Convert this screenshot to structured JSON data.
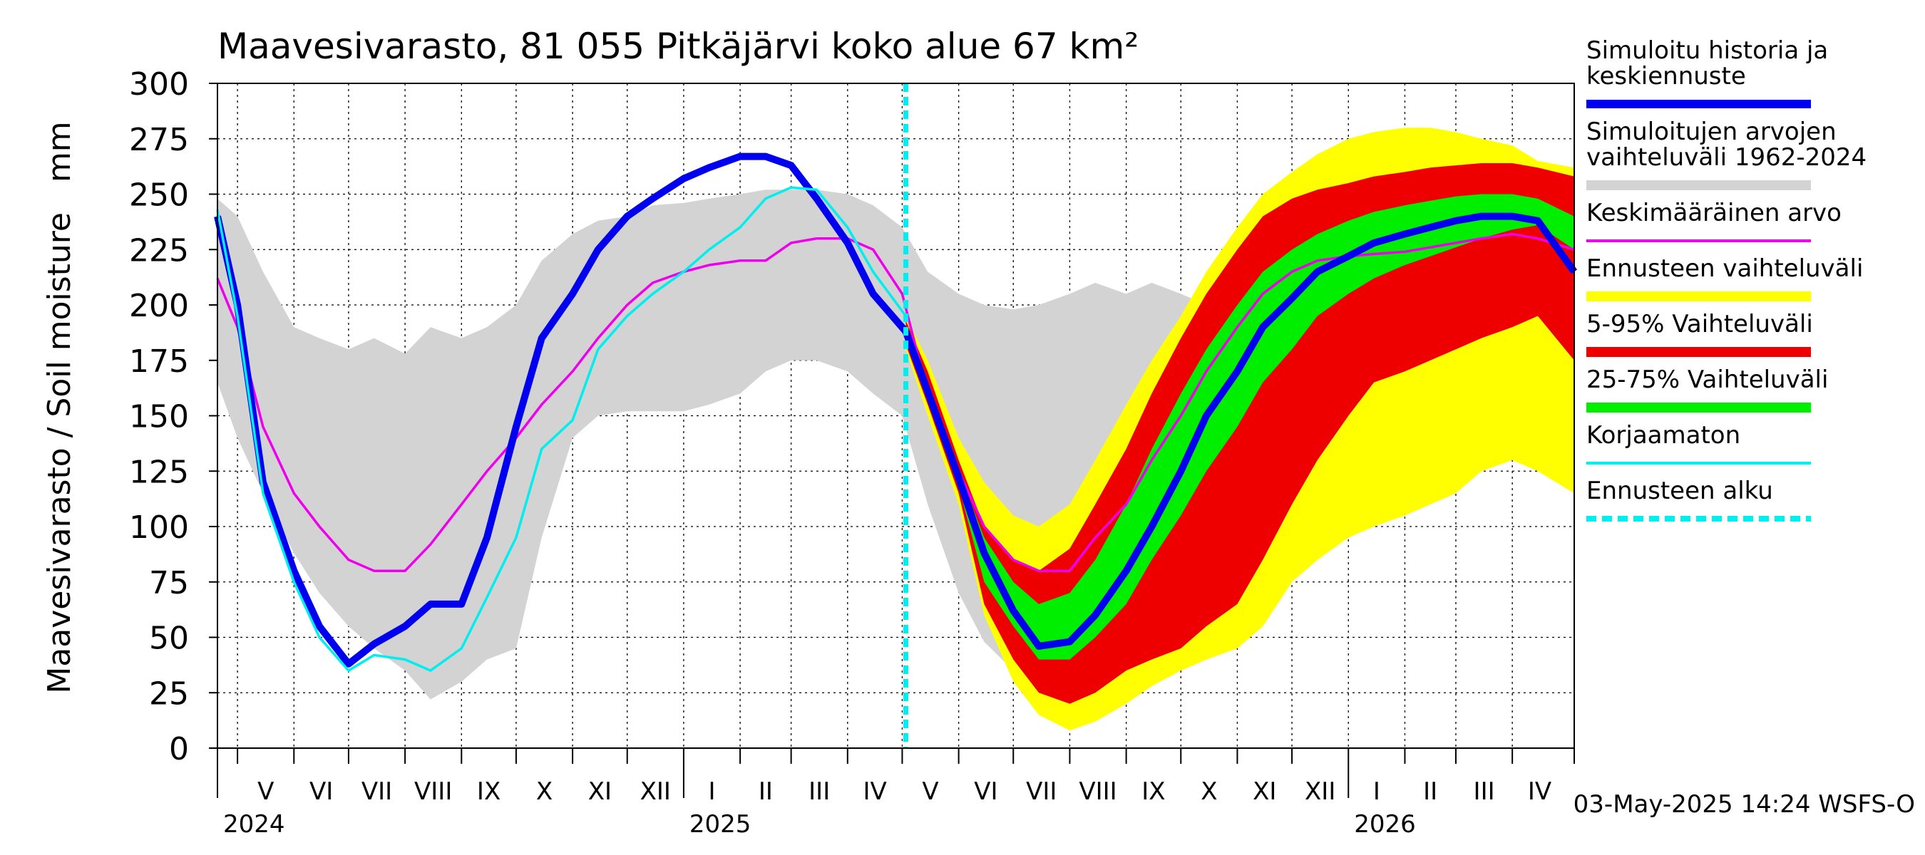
{
  "chart_data": {
    "type": "area",
    "title": "Maavesivarasto, 81 055 Pitkäjärvi koko alue 67 km²",
    "ylabel": "Maavesivarasto / Soil moisture   mm",
    "ylim": [
      0,
      300
    ],
    "yticks": [
      0,
      25,
      50,
      75,
      100,
      125,
      150,
      175,
      200,
      225,
      250,
      275,
      300
    ],
    "xlim": [
      "2024-04-20",
      "2026-05-05"
    ],
    "grid": true,
    "legend_position": "right",
    "forecast_start": "2025-05-03",
    "footer": "03-May-2025 14:24 WSFS-O",
    "months": [
      {
        "label": "V",
        "start": "2024-05-01",
        "end": "2024-06-01"
      },
      {
        "label": "VI",
        "start": "2024-06-01",
        "end": "2024-07-01"
      },
      {
        "label": "VII",
        "start": "2024-07-01",
        "end": "2024-08-01"
      },
      {
        "label": "VIII",
        "start": "2024-08-01",
        "end": "2024-09-01"
      },
      {
        "label": "IX",
        "start": "2024-09-01",
        "end": "2024-10-01"
      },
      {
        "label": "X",
        "start": "2024-10-01",
        "end": "2024-11-01"
      },
      {
        "label": "XI",
        "start": "2024-11-01",
        "end": "2024-12-01"
      },
      {
        "label": "XII",
        "start": "2024-12-01",
        "end": "2025-01-01"
      },
      {
        "label": "I",
        "start": "2025-01-01",
        "end": "2025-02-01"
      },
      {
        "label": "II",
        "start": "2025-02-01",
        "end": "2025-03-01"
      },
      {
        "label": "III",
        "start": "2025-03-01",
        "end": "2025-04-01"
      },
      {
        "label": "IV",
        "start": "2025-04-01",
        "end": "2025-05-01"
      },
      {
        "label": "V",
        "start": "2025-05-01",
        "end": "2025-06-01"
      },
      {
        "label": "VI",
        "start": "2025-06-01",
        "end": "2025-07-01"
      },
      {
        "label": "VII",
        "start": "2025-07-01",
        "end": "2025-08-01"
      },
      {
        "label": "VIII",
        "start": "2025-08-01",
        "end": "2025-09-01"
      },
      {
        "label": "IX",
        "start": "2025-09-01",
        "end": "2025-10-01"
      },
      {
        "label": "X",
        "start": "2025-10-01",
        "end": "2025-11-01"
      },
      {
        "label": "XI",
        "start": "2025-11-01",
        "end": "2025-12-01"
      },
      {
        "label": "XII",
        "start": "2025-12-01",
        "end": "2026-01-01"
      },
      {
        "label": "I",
        "start": "2026-01-01",
        "end": "2026-02-01"
      },
      {
        "label": "II",
        "start": "2026-02-01",
        "end": "2026-03-01"
      },
      {
        "label": "III",
        "start": "2026-03-01",
        "end": "2026-04-01"
      },
      {
        "label": "IV",
        "start": "2026-04-01",
        "end": "2026-05-01"
      }
    ],
    "years": [
      {
        "label": "2024",
        "date": "2024-04-20"
      },
      {
        "label": "2025",
        "date": "2025-01-01"
      },
      {
        "label": "2026",
        "date": "2026-01-01"
      }
    ],
    "legend": [
      {
        "key": "sim",
        "label": "Simuloitu historia ja\nkeskiennuste",
        "color": "#0000ee",
        "style": "thick"
      },
      {
        "key": "range",
        "label": "Simuloitujen arvojen\nvaihteluväli 1962-2024",
        "color": "#d3d3d3",
        "style": "band"
      },
      {
        "key": "mean",
        "label": "Keskimääräinen arvo",
        "color": "#ee00ee",
        "style": "line"
      },
      {
        "key": "ens",
        "label": "Ennusteen vaihteluväli",
        "color": "#ffff00",
        "style": "band"
      },
      {
        "key": "p5_95",
        "label": "5-95% Vaihteluväli",
        "color": "#ee0000",
        "style": "band"
      },
      {
        "key": "p25_75",
        "label": "25-75% Vaihteluväli",
        "color": "#00ee00",
        "style": "band"
      },
      {
        "key": "uncorr",
        "label": "Korjaamaton",
        "color": "#00eeee",
        "style": "line"
      },
      {
        "key": "fstart",
        "label": "Ennusteen alku",
        "color": "#00eeee",
        "style": "dashed"
      }
    ],
    "hist_range": {
      "x": [
        "2024-04-20",
        "2024-05-01",
        "2024-05-15",
        "2024-06-01",
        "2024-06-15",
        "2024-07-01",
        "2024-07-15",
        "2024-08-01",
        "2024-08-15",
        "2024-09-01",
        "2024-09-15",
        "2024-10-01",
        "2024-10-15",
        "2024-11-01",
        "2024-11-15",
        "2024-12-01",
        "2024-12-15",
        "2025-01-01",
        "2025-01-15",
        "2025-02-01",
        "2025-02-15",
        "2025-03-01",
        "2025-03-15",
        "2025-04-01",
        "2025-04-15",
        "2025-05-01",
        "2025-05-15",
        "2025-06-01",
        "2025-06-15",
        "2025-07-01",
        "2025-07-15",
        "2025-08-01",
        "2025-08-15",
        "2025-09-01",
        "2025-09-15",
        "2025-10-01",
        "2025-10-15",
        "2025-11-01",
        "2025-11-15",
        "2025-12-01",
        "2025-12-15",
        "2026-01-01",
        "2026-01-15",
        "2026-02-01",
        "2026-02-15",
        "2026-03-01",
        "2026-03-15",
        "2026-04-01",
        "2026-04-15",
        "2026-05-05"
      ],
      "upper": [
        248,
        240,
        215,
        190,
        185,
        180,
        185,
        178,
        190,
        185,
        190,
        200,
        220,
        232,
        238,
        240,
        245,
        246,
        248,
        250,
        252,
        252,
        252,
        250,
        245,
        235,
        215,
        205,
        200,
        198,
        200,
        205,
        210,
        205,
        210,
        205,
        200,
        215,
        230,
        238,
        245,
        248,
        250,
        251,
        252,
        252,
        253,
        253,
        252,
        250
      ],
      "lower": [
        165,
        140,
        115,
        88,
        70,
        55,
        45,
        35,
        22,
        30,
        40,
        45,
        95,
        140,
        150,
        152,
        152,
        152,
        155,
        160,
        170,
        175,
        175,
        170,
        160,
        150,
        110,
        70,
        48,
        35,
        28,
        30,
        35,
        45,
        60,
        80,
        100,
        115,
        125,
        130,
        135,
        138,
        140,
        142,
        145,
        150,
        155,
        160,
        165,
        168
      ]
    },
    "ensemble": {
      "x": [
        "2025-05-03",
        "2025-05-15",
        "2025-06-01",
        "2025-06-15",
        "2025-07-01",
        "2025-07-15",
        "2025-08-01",
        "2025-08-15",
        "2025-09-01",
        "2025-09-15",
        "2025-10-01",
        "2025-10-15",
        "2025-11-01",
        "2025-11-15",
        "2025-12-01",
        "2025-12-15",
        "2026-01-01",
        "2026-01-15",
        "2026-02-01",
        "2026-02-15",
        "2026-03-01",
        "2026-03-15",
        "2026-04-01",
        "2026-04-15",
        "2026-05-05"
      ],
      "ens_upper": [
        195,
        175,
        140,
        120,
        105,
        100,
        110,
        130,
        155,
        175,
        195,
        215,
        235,
        250,
        260,
        268,
        275,
        278,
        280,
        280,
        278,
        275,
        272,
        265,
        262
      ],
      "ens_lower": [
        180,
        150,
        110,
        60,
        30,
        15,
        8,
        12,
        20,
        28,
        35,
        40,
        45,
        55,
        75,
        85,
        95,
        100,
        105,
        110,
        115,
        125,
        130,
        125,
        115
      ],
      "p95": [
        193,
        170,
        130,
        100,
        85,
        80,
        90,
        110,
        135,
        160,
        185,
        205,
        225,
        240,
        248,
        252,
        255,
        258,
        260,
        262,
        263,
        264,
        264,
        262,
        258
      ],
      "p5": [
        182,
        155,
        115,
        65,
        40,
        25,
        20,
        25,
        35,
        40,
        45,
        55,
        65,
        85,
        110,
        130,
        150,
        165,
        170,
        175,
        180,
        185,
        190,
        195,
        175
      ],
      "p75": [
        190,
        165,
        125,
        95,
        75,
        65,
        70,
        85,
        110,
        135,
        160,
        180,
        200,
        215,
        225,
        232,
        238,
        242,
        245,
        247,
        249,
        250,
        250,
        248,
        240
      ],
      "p25": [
        185,
        158,
        118,
        75,
        55,
        40,
        40,
        50,
        65,
        85,
        105,
        125,
        145,
        165,
        180,
        195,
        205,
        212,
        218,
        222,
        226,
        230,
        234,
        236,
        225
      ],
      "median": [
        188,
        161,
        122,
        88,
        62,
        46,
        48,
        60,
        80,
        100,
        125,
        150,
        170,
        190,
        203,
        215,
        222,
        228,
        232,
        235,
        238,
        240,
        240,
        238,
        215
      ]
    },
    "sim_history": {
      "x": [
        "2024-04-20",
        "2024-05-01",
        "2024-05-15",
        "2024-06-01",
        "2024-06-15",
        "2024-07-01",
        "2024-07-15",
        "2024-08-01",
        "2024-08-15",
        "2024-09-01",
        "2024-09-15",
        "2024-10-01",
        "2024-10-15",
        "2024-11-01",
        "2024-11-15",
        "2024-12-01",
        "2024-12-15",
        "2025-01-01",
        "2025-01-15",
        "2025-02-01",
        "2025-02-15",
        "2025-03-01",
        "2025-03-15",
        "2025-04-01",
        "2025-04-15",
        "2025-05-03"
      ],
      "values": [
        240,
        200,
        120,
        80,
        55,
        38,
        47,
        55,
        65,
        65,
        95,
        145,
        185,
        205,
        225,
        240,
        248,
        257,
        262,
        267,
        267,
        263,
        248,
        228,
        205,
        188
      ]
    },
    "uncorrected": {
      "x": [
        "2024-04-20",
        "2024-05-01",
        "2024-05-15",
        "2024-06-01",
        "2024-06-15",
        "2024-07-01",
        "2024-07-15",
        "2024-08-01",
        "2024-08-15",
        "2024-09-01",
        "2024-09-15",
        "2024-10-01",
        "2024-10-15",
        "2024-11-01",
        "2024-11-15",
        "2024-12-01",
        "2024-12-15",
        "2025-01-01",
        "2025-01-15",
        "2025-02-01",
        "2025-02-15",
        "2025-03-01",
        "2025-03-15",
        "2025-04-01",
        "2025-04-15",
        "2025-05-03"
      ],
      "values": [
        243,
        195,
        115,
        75,
        50,
        35,
        42,
        40,
        35,
        45,
        68,
        95,
        135,
        148,
        180,
        195,
        205,
        215,
        225,
        235,
        248,
        253,
        252,
        235,
        215,
        195
      ]
    },
    "mean": {
      "x": [
        "2024-04-20",
        "2024-05-01",
        "2024-05-15",
        "2024-06-01",
        "2024-06-15",
        "2024-07-01",
        "2024-07-15",
        "2024-08-01",
        "2024-08-15",
        "2024-09-01",
        "2024-09-15",
        "2024-10-01",
        "2024-10-15",
        "2024-11-01",
        "2024-11-15",
        "2024-12-01",
        "2024-12-15",
        "2025-01-01",
        "2025-01-15",
        "2025-02-01",
        "2025-02-15",
        "2025-03-01",
        "2025-03-15",
        "2025-04-01",
        "2025-04-15",
        "2025-05-01",
        "2025-05-15",
        "2025-06-01",
        "2025-06-15",
        "2025-07-01",
        "2025-07-15",
        "2025-08-01",
        "2025-08-15",
        "2025-09-01",
        "2025-09-15",
        "2025-10-01",
        "2025-10-15",
        "2025-11-01",
        "2025-11-15",
        "2025-12-01",
        "2025-12-15",
        "2026-01-01",
        "2026-01-15",
        "2026-02-01",
        "2026-02-15",
        "2026-03-01",
        "2026-03-15",
        "2026-04-01",
        "2026-04-15",
        "2026-05-05"
      ],
      "values": [
        212,
        190,
        145,
        115,
        100,
        85,
        80,
        80,
        92,
        110,
        125,
        140,
        155,
        170,
        185,
        200,
        210,
        215,
        218,
        220,
        220,
        228,
        230,
        230,
        225,
        205,
        160,
        125,
        100,
        85,
        80,
        80,
        95,
        110,
        130,
        150,
        170,
        190,
        205,
        215,
        220,
        222,
        223,
        224,
        226,
        228,
        230,
        232,
        230,
        225
      ]
    }
  }
}
